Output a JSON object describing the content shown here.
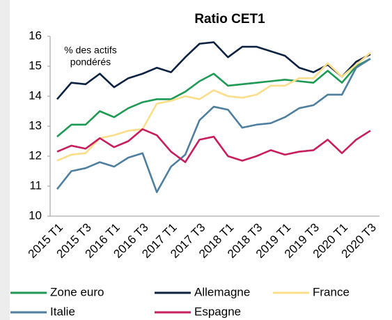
{
  "chart_data": {
    "type": "line",
    "title": "Ratio CET1",
    "annotation": [
      "% des actifs",
      "pondérés"
    ],
    "categories": [
      "2015 T1",
      null,
      "2015 T3",
      null,
      "2016 T1",
      null,
      "2016 T3",
      null,
      "2017 T1",
      null,
      "2017 T3",
      null,
      "2018 T1",
      null,
      "2018 T3",
      null,
      "2019 T1",
      null,
      "2019 T3",
      null,
      "2020 T1",
      null,
      "2020 T3"
    ],
    "series": [
      {
        "name": "Zone euro",
        "color": "#1f9a55",
        "values": [
          12.65,
          13.05,
          13.05,
          13.5,
          13.3,
          13.6,
          13.8,
          13.9,
          13.9,
          14.15,
          14.5,
          14.75,
          14.35,
          14.4,
          14.45,
          14.5,
          14.55,
          14.5,
          14.45,
          14.85,
          14.45,
          15.0,
          15.25
        ]
      },
      {
        "name": "Allemagne",
        "color": "#0d2240",
        "values": [
          13.9,
          14.45,
          14.4,
          14.75,
          14.3,
          14.6,
          14.75,
          14.95,
          14.8,
          15.3,
          15.75,
          15.8,
          15.3,
          15.65,
          15.65,
          15.5,
          15.35,
          14.95,
          14.8,
          15.05,
          14.65,
          15.15,
          15.4
        ]
      },
      {
        "name": "France",
        "color": "#fbdd8a",
        "values": [
          11.85,
          12.05,
          12.1,
          12.6,
          12.7,
          12.85,
          12.9,
          13.75,
          13.85,
          14.0,
          13.9,
          14.2,
          14.0,
          13.95,
          14.05,
          14.35,
          14.35,
          14.6,
          14.6,
          15.1,
          14.65,
          15.05,
          15.45
        ]
      },
      {
        "name": "Italie",
        "color": "#4f7f9f",
        "values": [
          10.9,
          11.5,
          11.6,
          11.8,
          11.65,
          11.95,
          12.1,
          10.8,
          11.65,
          12.05,
          13.2,
          13.65,
          13.55,
          12.95,
          13.05,
          13.1,
          13.3,
          13.6,
          13.7,
          14.05,
          14.05,
          14.95,
          15.25
        ]
      },
      {
        "name": "Espagne",
        "color": "#c81e5e",
        "values": [
          12.15,
          12.35,
          12.25,
          12.6,
          12.3,
          12.5,
          12.9,
          12.7,
          12.15,
          11.8,
          12.55,
          12.65,
          12.0,
          11.85,
          12.0,
          12.2,
          12.05,
          12.15,
          12.2,
          12.55,
          12.1,
          12.55,
          12.85
        ]
      }
    ],
    "ylim": [
      10,
      16
    ],
    "yticks": [
      10,
      11,
      12,
      13,
      14,
      15,
      16
    ],
    "grid": false
  }
}
